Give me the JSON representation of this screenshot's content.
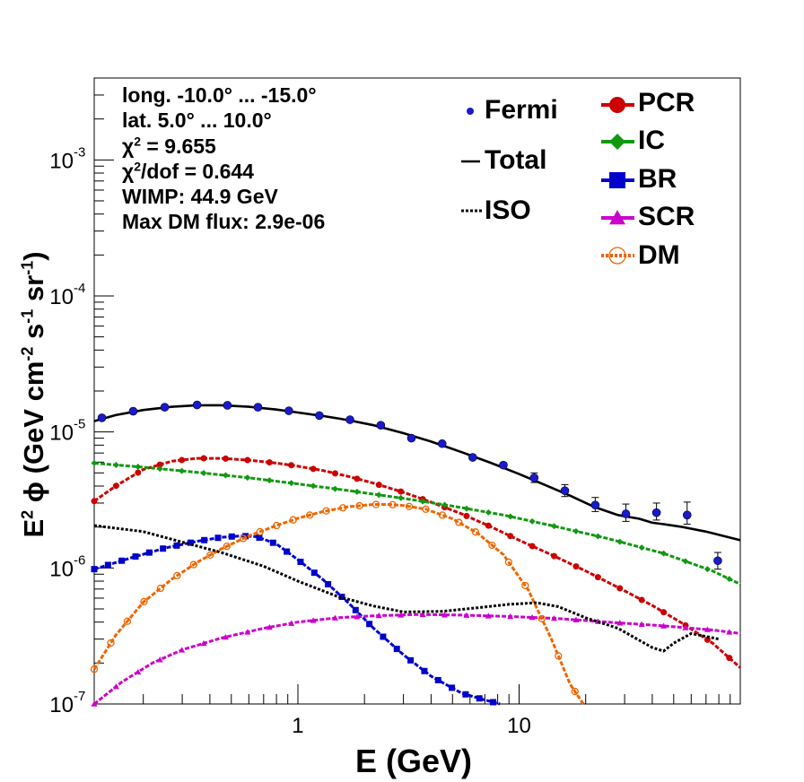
{
  "chart_data": {
    "type": "line",
    "xscale": "log",
    "yscale": "log",
    "xlim": [
      0.12,
      100
    ],
    "ylim": [
      1e-07,
      0.004
    ],
    "xlabel": "E (GeV)",
    "ylabel": "E² ϕ (GeV cm⁻² s⁻¹ sr⁻¹)",
    "x_ticks": [
      {
        "label": "1",
        "value": 1
      },
      {
        "label": "10",
        "value": 10
      }
    ],
    "y_ticks": [
      {
        "base": "10",
        "exp": "-7",
        "value": 1e-07
      },
      {
        "base": "10",
        "exp": "-6",
        "value": 1e-06
      },
      {
        "base": "10",
        "exp": "-5",
        "value": 1e-05
      },
      {
        "base": "10",
        "exp": "-4",
        "value": 0.0001
      },
      {
        "base": "10",
        "exp": "-3",
        "value": 0.001
      }
    ],
    "info_lines": {
      "longitude": "long. -10.0° ... -15.0°",
      "latitude": "lat. 5.0° ... 10.0°",
      "chi2_prefix": "χ",
      "chi2_suffix": " = 9.655",
      "chi2dof_prefix": "χ",
      "chi2dof_suffix": "/dof = 0.644",
      "wimp": "WIMP: 44.9 GeV",
      "max_dm_flux": "Max DM flux: 2.9e-06"
    },
    "legend": {
      "fermi": "Fermi",
      "total": "Total",
      "iso": "ISO",
      "pcr": "PCR",
      "ic": "IC",
      "br": "BR",
      "scr": "SCR",
      "dm": "DM"
    },
    "fermi_points": {
      "x": [
        0.13,
        0.18,
        0.25,
        0.35,
        0.48,
        0.66,
        0.91,
        1.25,
        1.72,
        2.37,
        3.26,
        4.49,
        6.17,
        8.49,
        11.7,
        16.1,
        22.1,
        30.4,
        41.8,
        57.5,
        79.1
      ],
      "y": [
        1.27e-05,
        1.42e-05,
        1.52e-05,
        1.58e-05,
        1.57e-05,
        1.52e-05,
        1.43e-05,
        1.32e-05,
        1.23e-05,
        1.12e-05,
        9e-06,
        8.2e-06,
        6.5e-06,
        5.7e-06,
        4.6e-06,
        3.7e-06,
        2.9e-06,
        2.5e-06,
        2.55e-06,
        2.45e-06,
        1.13e-06
      ],
      "err_up": [
        1.28e-05,
        1.43e-05,
        1.53e-05,
        1.59e-05,
        1.58e-05,
        1.53e-05,
        1.44e-05,
        1.33e-05,
        1.24e-05,
        1.13e-05,
        9.1e-06,
        8.35e-06,
        6.7e-06,
        5.9e-06,
        5e-06,
        4.1e-06,
        3.3e-06,
        2.95e-06,
        3e-06,
        3.05e-06,
        1.3e-06
      ],
      "err_dn": [
        1.26e-05,
        1.41e-05,
        1.51e-05,
        1.57e-05,
        1.56e-05,
        1.51e-05,
        1.42e-05,
        1.31e-05,
        1.22e-05,
        1.11e-05,
        8.9e-06,
        8.05e-06,
        6.3e-06,
        5.5e-06,
        4.25e-06,
        3.35e-06,
        2.6e-06,
        2.2e-06,
        2.25e-06,
        2.1e-06,
        9.8e-07
      ]
    },
    "series": [
      {
        "name": "Total",
        "color": "#000000",
        "style": "solid",
        "marker": "none",
        "x": [
          0.12,
          0.15,
          0.2,
          0.27,
          0.35,
          0.45,
          0.6,
          0.8,
          1.0,
          1.3,
          1.7,
          2.2,
          3.0,
          4.0,
          5.5,
          7.5,
          10,
          13,
          17,
          22,
          28,
          35,
          40,
          45,
          55,
          70,
          100
        ],
        "y": [
          1.2e-05,
          1.33e-05,
          1.45e-05,
          1.53e-05,
          1.57e-05,
          1.57e-05,
          1.53e-05,
          1.46e-05,
          1.39e-05,
          1.31e-05,
          1.22e-05,
          1.12e-05,
          9.8e-06,
          8.5e-06,
          7.1e-06,
          5.9e-06,
          4.9e-06,
          4.1e-06,
          3.4e-06,
          2.8e-06,
          2.45e-06,
          2.3e-06,
          2.15e-06,
          2.1e-06,
          2e-06,
          1.85e-06,
          1.6e-06
        ]
      },
      {
        "name": "PCR",
        "color": "#cc0000",
        "style": "dashed",
        "marker": "circle",
        "x": [
          0.12,
          0.15,
          0.2,
          0.27,
          0.35,
          0.45,
          0.6,
          0.8,
          1.0,
          1.3,
          1.7,
          2.2,
          3.0,
          4.0,
          5.5,
          7.5,
          10,
          14,
          20,
          28,
          40,
          55,
          75,
          100
        ],
        "y": [
          3.1e-06,
          4e-06,
          5.3e-06,
          6.1e-06,
          6.4e-06,
          6.4e-06,
          6.2e-06,
          5.9e-06,
          5.6e-06,
          5.2e-06,
          4.7e-06,
          4.2e-06,
          3.6e-06,
          3.05e-06,
          2.5e-06,
          2e-06,
          1.6e-06,
          1.25e-06,
          9.5e-07,
          7.2e-07,
          5.3e-07,
          3.9e-07,
          2.8e-07,
          1.85e-07
        ]
      },
      {
        "name": "IC",
        "color": "#119911",
        "style": "dashed",
        "marker": "diamond",
        "x": [
          0.12,
          0.2,
          0.35,
          0.6,
          1.0,
          1.7,
          3.0,
          5.0,
          8.5,
          14,
          25,
          45,
          75,
          100
        ],
        "y": [
          5.9e-06,
          5.5e-06,
          5.05e-06,
          4.6e-06,
          4.15e-06,
          3.7e-06,
          3.25e-06,
          2.85e-06,
          2.45e-06,
          2.05e-06,
          1.65e-06,
          1.28e-06,
          9.5e-07,
          7.6e-07
        ]
      },
      {
        "name": "BR",
        "color": "#0000cc",
        "style": "dashed",
        "marker": "square",
        "x": [
          0.12,
          0.18,
          0.25,
          0.35,
          0.45,
          0.55,
          0.65,
          0.8,
          1.0,
          1.3,
          1.7,
          2.2,
          3.0,
          4.0,
          5.5,
          7.0,
          8.2
        ],
        "y": [
          9.8e-07,
          1.2e-06,
          1.4e-06,
          1.57e-06,
          1.68e-06,
          1.72e-06,
          1.7e-06,
          1.5e-06,
          1.15e-06,
          8.2e-07,
          5.5e-07,
          3.6e-07,
          2.3e-07,
          1.6e-07,
          1.2e-07,
          1.07e-07,
          1e-07
        ]
      },
      {
        "name": "SCR",
        "color": "#cc00cc",
        "style": "dashed",
        "marker": "triangle",
        "x": [
          0.12,
          0.16,
          0.22,
          0.3,
          0.45,
          0.7,
          1.0,
          1.5,
          2.2,
          3.5,
          5.5,
          9.0,
          15,
          25,
          45,
          75,
          100
        ],
        "y": [
          1e-07,
          1.45e-07,
          2e-07,
          2.5e-07,
          3.05e-07,
          3.6e-07,
          4e-07,
          4.3e-07,
          4.45e-07,
          4.55e-07,
          4.5e-07,
          4.4e-07,
          4.25e-07,
          4e-07,
          3.75e-07,
          3.5e-07,
          3.3e-07
        ]
      },
      {
        "name": "DM",
        "color": "#ee6600",
        "style": "dashed",
        "marker": "open-circle",
        "x": [
          0.12,
          0.15,
          0.2,
          0.27,
          0.35,
          0.45,
          0.6,
          0.8,
          1.0,
          1.3,
          1.7,
          2.2,
          2.6,
          3.0,
          3.8,
          5.0,
          6.5,
          8.5,
          11,
          14,
          17,
          19.5
        ],
        "y": [
          1.8e-07,
          3.2e-07,
          5.6e-07,
          8.3e-07,
          1.1e-06,
          1.38e-06,
          1.72e-06,
          2.05e-06,
          2.32e-06,
          2.6e-06,
          2.82e-06,
          2.93e-06,
          2.93e-06,
          2.88e-06,
          2.7e-06,
          2.3e-06,
          1.8e-06,
          1.25e-06,
          6.9e-07,
          3e-07,
          1.4e-07,
          1e-07
        ]
      },
      {
        "name": "ISO",
        "color": "#000000",
        "style": "dotted",
        "marker": "none",
        "x": [
          0.12,
          0.2,
          0.3,
          0.45,
          0.7,
          1.0,
          1.5,
          2.2,
          3.0,
          4.5,
          6.5,
          9.0,
          12,
          15,
          20,
          28,
          40,
          45,
          50,
          60,
          80
        ],
        "y": [
          2.05e-06,
          1.85e-06,
          1.55e-06,
          1.3e-06,
          1.03e-06,
          8e-07,
          6.2e-07,
          5.25e-07,
          4.75e-07,
          4.8e-07,
          5.1e-07,
          5.4e-07,
          5.55e-07,
          5.2e-07,
          4.3e-07,
          3.6e-07,
          2.6e-07,
          2.45e-07,
          2.8e-07,
          3.3e-07,
          3e-07
        ]
      }
    ]
  }
}
